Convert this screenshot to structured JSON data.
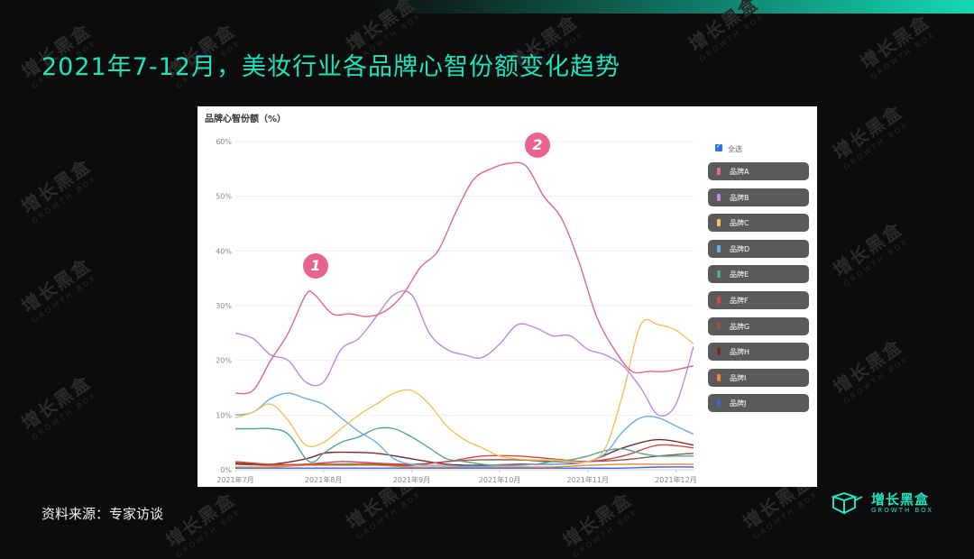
{
  "title": "2021年7-12月，美妆行业各品牌心智份额变化趋势",
  "source": "资料来源：专家访谈",
  "logo": {
    "name": "增长黑盒",
    "sub": "GROWTH BOX"
  },
  "watermark": {
    "name": "增长黑盒",
    "sub": "GROWTH BOX"
  },
  "legend": {
    "select_all": "全选"
  },
  "markers": [
    "1",
    "2"
  ],
  "chart_data": {
    "type": "line",
    "title": "品牌心智份额（%）",
    "y_ticks": [
      "0%",
      "10%",
      "20%",
      "30%",
      "40%",
      "50%",
      "60%"
    ],
    "ylim": [
      0,
      60
    ],
    "x_tick_labels": [
      "2021年7月",
      "2021年8月",
      "2021年9月",
      "2021年10月",
      "2021年11月",
      "2021年12月"
    ],
    "x_tick_positions": [
      0,
      20,
      40,
      60,
      80,
      100
    ],
    "xlim": [
      0,
      104
    ],
    "grid": "horizontal",
    "legend_position": "right",
    "series": [
      {
        "name": "品牌A",
        "color": "#e0668b",
        "x": [
          0,
          4,
          8,
          12,
          16,
          18,
          22,
          26,
          30,
          34,
          38,
          42,
          46,
          50,
          54,
          58,
          62,
          66,
          70,
          74,
          78,
          82,
          86,
          90,
          94,
          98,
          104
        ],
        "y": [
          14,
          14.5,
          20,
          25,
          32,
          32,
          28.5,
          28.5,
          28,
          29,
          32,
          37,
          40,
          47,
          53,
          55,
          56,
          55.5,
          50,
          46,
          38,
          28,
          22,
          18,
          18,
          18,
          19
        ]
      },
      {
        "name": "品牌B",
        "color": "#b88be6",
        "x": [
          0,
          4,
          8,
          12,
          16,
          20,
          24,
          28,
          32,
          36,
          40,
          44,
          48,
          52,
          56,
          60,
          64,
          68,
          72,
          76,
          80,
          84,
          88,
          92,
          96,
          100,
          104
        ],
        "y": [
          25,
          24,
          21,
          20,
          16,
          16,
          22,
          24,
          28,
          32,
          32,
          25,
          22,
          21,
          20.5,
          23,
          26.5,
          26,
          24.5,
          24.5,
          22,
          21,
          19,
          15,
          10,
          12,
          22.5
        ]
      },
      {
        "name": "品牌C",
        "color": "#f2c25c",
        "x": [
          0,
          4,
          8,
          12,
          16,
          20,
          24,
          28,
          32,
          36,
          40,
          44,
          48,
          52,
          56,
          60,
          64,
          68,
          72,
          76,
          80,
          84,
          88,
          92,
          96,
          100,
          104
        ],
        "y": [
          9.5,
          10.5,
          12,
          9,
          4.5,
          5,
          7.5,
          10,
          12,
          14,
          14.5,
          12,
          8,
          5.5,
          4,
          2.5,
          2,
          1.8,
          1.8,
          1.5,
          1.5,
          4,
          14,
          26.5,
          26.5,
          25.5,
          23
        ]
      },
      {
        "name": "品牌D",
        "color": "#6aaee6",
        "x": [
          0,
          4,
          8,
          12,
          16,
          20,
          24,
          28,
          32,
          36,
          40,
          44,
          48,
          52,
          56,
          60,
          64,
          68,
          72,
          76,
          80,
          84,
          88,
          92,
          96,
          100,
          104
        ],
        "y": [
          10,
          10.5,
          13,
          14,
          13,
          12,
          9.5,
          7,
          5,
          2,
          1,
          0.8,
          0.8,
          0.6,
          0.6,
          0.8,
          0.8,
          1,
          1,
          1.2,
          1.5,
          3,
          7,
          9.5,
          9.5,
          8,
          6.5
        ]
      },
      {
        "name": "品牌E",
        "color": "#4fa88a",
        "x": [
          0,
          4,
          8,
          12,
          16,
          18,
          20,
          24,
          28,
          32,
          36,
          40,
          44,
          48,
          52,
          56,
          60,
          64,
          68,
          72,
          76,
          80,
          84,
          88,
          92,
          96,
          100,
          104
        ],
        "y": [
          7.5,
          7.5,
          7.5,
          6.5,
          2,
          1.5,
          3,
          5,
          6,
          7.5,
          7.5,
          6,
          4,
          2,
          1.5,
          1,
          0.8,
          0.8,
          1,
          1.5,
          1.8,
          2.5,
          3.5,
          3.8,
          3,
          2.5,
          2.5,
          2.5
        ]
      },
      {
        "name": "品牌F",
        "color": "#d64545",
        "x": [
          0,
          8,
          16,
          24,
          32,
          40,
          48,
          56,
          64,
          72,
          80,
          88,
          96,
          104
        ],
        "y": [
          1.5,
          1,
          1,
          1.5,
          1.2,
          1,
          1.5,
          2.5,
          2.5,
          2,
          1.5,
          2.5,
          4.5,
          4
        ]
      },
      {
        "name": "品牌G",
        "color": "#8a5a44",
        "x": [
          0,
          8,
          16,
          24,
          32,
          40,
          48,
          56,
          64,
          72,
          80,
          88,
          96,
          104
        ],
        "y": [
          1,
          0.8,
          1,
          1,
          1,
          0.8,
          1.5,
          1.8,
          1.8,
          1.5,
          1.5,
          1.8,
          2.5,
          3
        ]
      },
      {
        "name": "品牌H",
        "color": "#7a2a2a",
        "x": [
          0,
          8,
          16,
          20,
          24,
          32,
          40,
          48,
          56,
          64,
          72,
          80,
          88,
          96,
          104
        ],
        "y": [
          1.2,
          1,
          2,
          3,
          3.2,
          3,
          2,
          1,
          0.8,
          1,
          1,
          1.5,
          4,
          5.5,
          4.5
        ]
      },
      {
        "name": "品牌I",
        "color": "#e8893a",
        "x": [
          0,
          8,
          16,
          24,
          32,
          40,
          48,
          56,
          64,
          72,
          80,
          88,
          96,
          104
        ],
        "y": [
          0.5,
          0.5,
          0.8,
          0.8,
          0.8,
          0.5,
          0.5,
          0.5,
          0.5,
          0.5,
          0.8,
          1,
          1,
          1
        ]
      },
      {
        "name": "品牌J",
        "color": "#3b66d6",
        "x": [
          0,
          8,
          16,
          24,
          32,
          40,
          48,
          56,
          64,
          72,
          80,
          88,
          96,
          104
        ],
        "y": [
          0.3,
          0.3,
          0.3,
          0.3,
          0.3,
          0.3,
          0.3,
          0.3,
          0.3,
          0.3,
          0.3,
          0.3,
          0.5,
          0.5
        ]
      }
    ]
  }
}
